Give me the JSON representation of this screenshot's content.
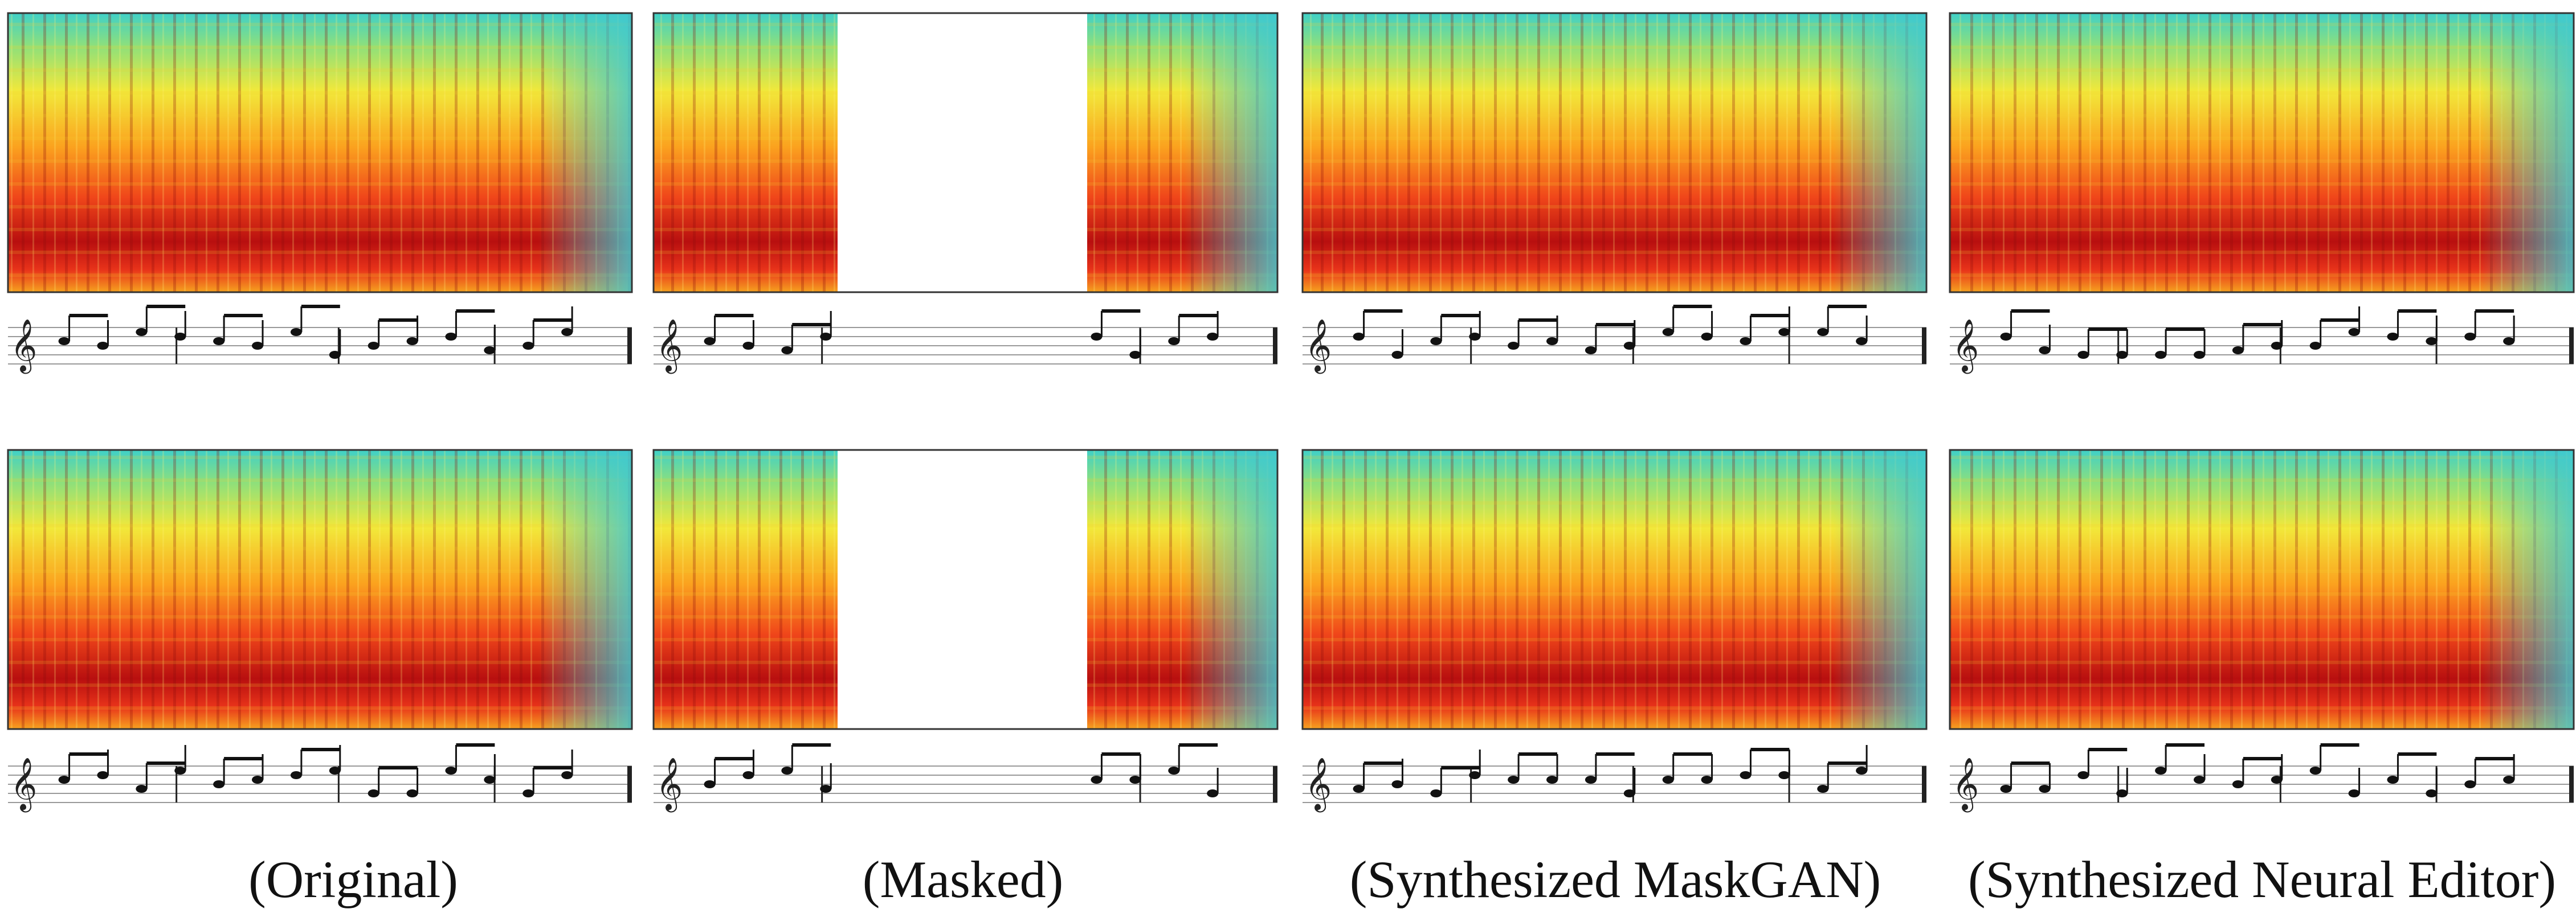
{
  "captions": [
    "(Original)",
    "(Masked)",
    "(Synthesized MaskGAN)",
    "(Synthesized Neural Editor)"
  ]
}
